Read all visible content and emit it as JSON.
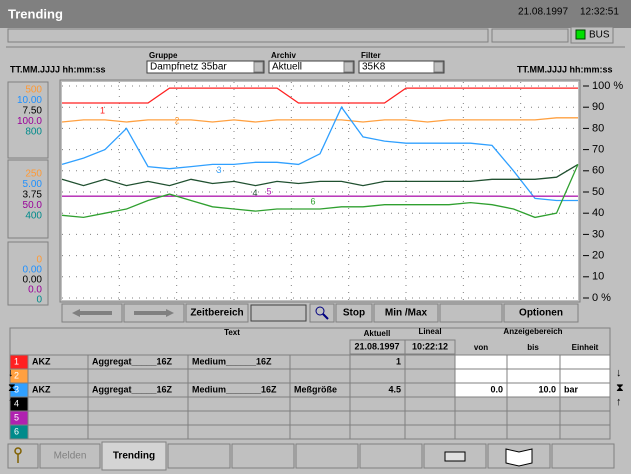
{
  "header": {
    "title": "Trending",
    "date": "21.08.1997",
    "time": "12:32:51",
    "bus": "BUS"
  },
  "toolbar": {
    "left_time": "TT.MM.JJJJ hh:mm:ss",
    "right_time": "TT.MM.JJJJ hh:mm:ss",
    "gruppe_label": "Gruppe",
    "gruppe": "Dampfnetz 35bar",
    "archiv_label": "Archiv",
    "archiv": "Aktuell",
    "filter_label": "Filter",
    "filter": "35K8"
  },
  "scale_colors": [
    "#ff9933",
    "#1e90ff",
    "#000000",
    "#990099",
    "#008b8b"
  ],
  "scales": [
    [
      "500",
      "10.00",
      "7.50",
      "100.0",
      "800"
    ],
    [
      "250",
      "5.00",
      "3.75",
      "50.0",
      "400"
    ],
    [
      "0",
      "0.00",
      "0.00",
      "0.0",
      "0"
    ]
  ],
  "buttons": {
    "zeitbereich": "Zeitbereich",
    "stop": "Stop",
    "minmax": "Min /Max",
    "optionen": "Optionen"
  },
  "chart_data": {
    "type": "line",
    "ylim": [
      0,
      100
    ],
    "grid": true,
    "yticks": [
      {
        "value": 100,
        "label": "100 %"
      },
      90,
      80,
      70,
      60,
      50,
      40,
      30,
      20,
      10,
      {
        "value": 0,
        "label": "0 %"
      }
    ],
    "series": [
      {
        "name": "1",
        "color": "#ff2020",
        "values": [
          92,
          92,
          92,
          92,
          92,
          99,
          99,
          99,
          99,
          99,
          99,
          92,
          92,
          92,
          92,
          92,
          99,
          99,
          99,
          99,
          99,
          99,
          99,
          99,
          99
        ]
      },
      {
        "name": "2",
        "color": "#ffa040",
        "values": [
          83,
          84,
          84,
          83,
          84,
          84,
          84,
          83,
          84,
          83,
          84,
          84,
          84,
          84,
          83,
          84,
          84,
          83,
          84,
          84,
          84,
          84,
          84,
          85,
          85
        ]
      },
      {
        "name": "3",
        "color": "#30a0ff",
        "values": [
          63,
          66,
          70,
          80,
          62,
          61,
          62,
          63,
          63,
          64,
          64,
          63,
          68,
          90,
          76,
          74,
          73,
          73,
          73,
          73,
          72,
          60,
          47,
          46,
          46
        ]
      },
      {
        "name": "4",
        "color": "#205030",
        "values": [
          56,
          53,
          56,
          53,
          55,
          53,
          56,
          54,
          55,
          53,
          55,
          54,
          55,
          55,
          53,
          55,
          55,
          55,
          55,
          55,
          56,
          56,
          56,
          57,
          63
        ]
      },
      {
        "name": "5",
        "color": "#b020b0",
        "values": [
          48,
          48,
          48,
          48,
          48,
          48,
          48,
          48,
          48,
          48,
          48,
          48,
          48,
          48,
          48,
          48,
          48,
          48,
          48,
          48,
          48,
          48,
          48,
          48,
          48
        ]
      },
      {
        "name": "6",
        "color": "#30a030",
        "values": [
          39,
          38,
          40,
          42,
          46,
          49,
          46,
          43,
          42,
          41,
          42,
          42,
          42,
          43,
          43,
          44,
          44,
          44,
          44,
          45,
          44,
          42,
          38,
          40,
          63
        ]
      }
    ]
  },
  "table": {
    "headers": {
      "text": "Text",
      "aktuell": "Aktuell",
      "lineal": "Lineal",
      "anzeigebereich": "Anzeigebereich",
      "von": "von",
      "bis": "bis",
      "einheit": "Einheit",
      "date": "21.08.1997",
      "time": "10:22:12"
    },
    "row_colors": [
      "#ff2020",
      "#ffa040",
      "#30a0ff",
      "#000000",
      "#b020b0",
      "#008b8b"
    ],
    "rows": [
      {
        "num": "1",
        "akz": "AKZ",
        "aggregat": "Aggregat_____16Z",
        "medium": "Medium______16Z",
        "aktuell": "1"
      },
      {
        "num": "2"
      },
      {
        "num": "3",
        "akz": "AKZ",
        "aggregat": "Aggregat_____16Z",
        "medium": "Medium_______16Z",
        "groesse": "Meßgröße",
        "aktuell": "4.5",
        "von": "0.0",
        "bis": "10.0",
        "einheit": "bar"
      },
      {
        "num": "4"
      },
      {
        "num": "5"
      },
      {
        "num": "6"
      }
    ]
  },
  "tabs": [
    "Melden",
    "Trending"
  ]
}
